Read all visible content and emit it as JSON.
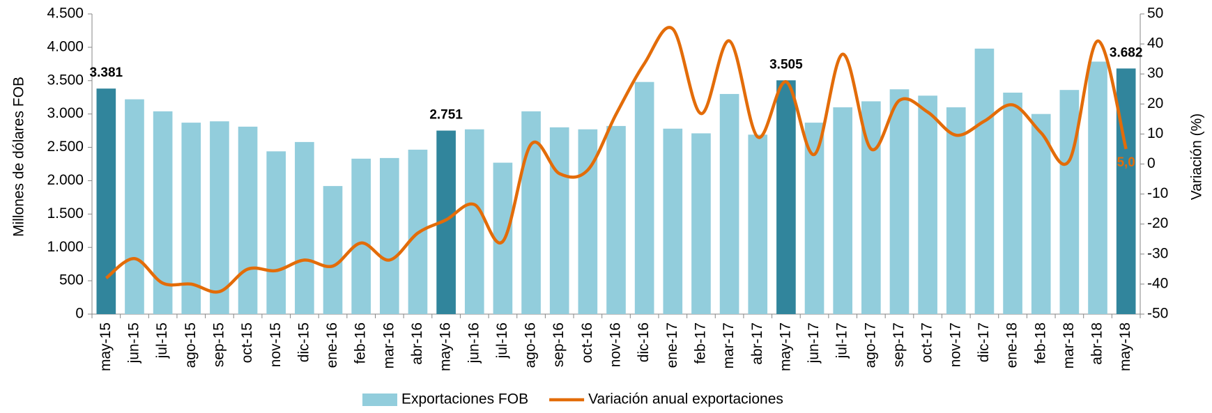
{
  "chart_data": {
    "type": "bar-line",
    "y_label": "Millones de dólares  FOB",
    "y2_label": "Variación (%)",
    "categories": [
      "may-15",
      "jun-15",
      "jul-15",
      "ago-15",
      "sep-15",
      "oct-15",
      "nov-15",
      "dic-15",
      "ene-16",
      "feb-16",
      "mar-16",
      "abr-16",
      "may-16",
      "jun-16",
      "jul-16",
      "ago-16",
      "sep-16",
      "oct-16",
      "nov-16",
      "dic-16",
      "ene-17",
      "feb-17",
      "mar-17",
      "abr-17",
      "may-17",
      "jun-17",
      "jul-17",
      "ago-17",
      "sep-17",
      "oct-17",
      "nov-17",
      "dic-17",
      "ene-18",
      "feb-18",
      "mar-18",
      "abr-18",
      "may-18"
    ],
    "series": [
      {
        "name": "Exportaciones FOB",
        "color": "#92cddc",
        "colors": [
          "#31859c",
          "#92cddc",
          "#92cddc",
          "#92cddc",
          "#92cddc",
          "#92cddc",
          "#92cddc",
          "#92cddc",
          "#92cddc",
          "#92cddc",
          "#92cddc",
          "#92cddc",
          "#31859c",
          "#92cddc",
          "#92cddc",
          "#92cddc",
          "#92cddc",
          "#92cddc",
          "#92cddc",
          "#92cddc",
          "#92cddc",
          "#92cddc",
          "#92cddc",
          "#92cddc",
          "#31859c",
          "#92cddc",
          "#92cddc",
          "#92cddc",
          "#92cddc",
          "#92cddc",
          "#92cddc",
          "#92cddc",
          "#92cddc",
          "#92cddc",
          "#92cddc",
          "#92cddc",
          "#31859c"
        ],
        "values": [
          3381,
          3220,
          3040,
          2870,
          2890,
          2810,
          2440,
          2580,
          1920,
          2330,
          2340,
          2465,
          2751,
          2770,
          2270,
          3040,
          2800,
          2770,
          2820,
          3480,
          2780,
          2710,
          3300,
          2690,
          3505,
          2870,
          3100,
          3190,
          3370,
          3275,
          3100,
          3980,
          3320,
          3000,
          3360,
          3785,
          3682
        ],
        "value_labels": [
          "3.381",
          null,
          null,
          null,
          null,
          null,
          null,
          null,
          null,
          null,
          null,
          null,
          "2.751",
          null,
          null,
          null,
          null,
          null,
          null,
          null,
          null,
          null,
          null,
          null,
          "3.505",
          null,
          null,
          null,
          null,
          null,
          null,
          null,
          null,
          null,
          null,
          null,
          "3.682"
        ]
      },
      {
        "name": "Variación anual exportaciones",
        "color": "#e36c09",
        "axis": "y2",
        "values": [
          -38,
          -31.5,
          -39.7,
          -40,
          -42.5,
          -35,
          -35.5,
          -32,
          -34,
          -26.3,
          -32,
          -23,
          -18.6,
          -13.5,
          -25.8,
          6.6,
          -3.2,
          -2,
          16.6,
          33.5,
          45,
          16.8,
          41,
          9,
          27.4,
          3.2,
          36.6,
          5,
          21.2,
          17.3,
          9.6,
          14.3,
          19.7,
          10.4,
          1.2,
          41,
          5.0
        ],
        "value_labels": [
          null,
          null,
          null,
          null,
          null,
          null,
          null,
          null,
          null,
          null,
          null,
          null,
          null,
          null,
          null,
          null,
          null,
          null,
          null,
          null,
          null,
          null,
          null,
          null,
          null,
          null,
          null,
          null,
          null,
          null,
          null,
          null,
          null,
          null,
          null,
          null,
          "5,0"
        ]
      }
    ],
    "ylim": [
      0,
      4500
    ],
    "yticks": [
      0,
      500,
      {
        "value": 1000,
        "label": "1.000"
      },
      {
        "value": 1500,
        "label": "1.500"
      },
      {
        "value": 2000,
        "label": "2.000"
      },
      {
        "value": 2500,
        "label": "2.500"
      },
      {
        "value": 3000,
        "label": "3.000"
      },
      {
        "value": 3500,
        "label": "3.500"
      },
      {
        "value": 4000,
        "label": "4.000"
      },
      {
        "value": 4500,
        "label": "4.500"
      }
    ],
    "y2lim": [
      -50,
      50
    ],
    "y2ticks": [
      -50,
      -40,
      -30,
      -20,
      -10,
      0,
      10,
      20,
      30,
      40,
      50
    ],
    "legend": "bottom"
  }
}
